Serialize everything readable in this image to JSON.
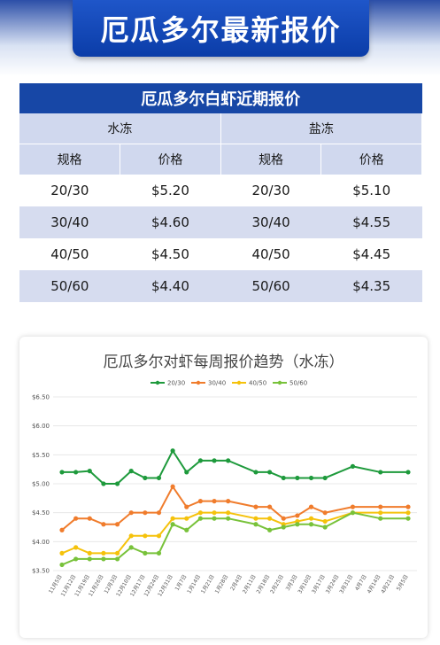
{
  "banner": {
    "title": "厄瓜多尔最新报价"
  },
  "table": {
    "title": "厄瓜多尔白虾近期报价",
    "groups": [
      "水冻",
      "盐冻"
    ],
    "columns": [
      "规格",
      "价格",
      "规格",
      "价格"
    ],
    "rows": [
      [
        "20/30",
        "$5.20",
        "20/30",
        "$5.10"
      ],
      [
        "30/40",
        "$4.60",
        "30/40",
        "$4.55"
      ],
      [
        "40/50",
        "$4.50",
        "40/50",
        "$4.45"
      ],
      [
        "50/60",
        "$4.40",
        "50/60",
        "$4.35"
      ]
    ]
  },
  "chart_data": {
    "type": "line",
    "title": "厄瓜多尔对虾每周报价趋势（水冻）",
    "xlabel": "",
    "ylabel": "",
    "ylim": [
      3.5,
      6.5
    ],
    "yticks": [
      "$3.50",
      "$4.00",
      "$4.50",
      "$5.00",
      "$5.50",
      "$6.00",
      "$6.50"
    ],
    "grid": true,
    "legend_position": "top",
    "categories": [
      "11月5日",
      "11月12日",
      "11月19日",
      "11月26日",
      "12月3日",
      "12月10日",
      "12月17日",
      "12月24日",
      "12月31日",
      "1月7日",
      "1月14日",
      "1月21日",
      "1月28日",
      "2月4日",
      "2月11日",
      "2月18日",
      "2月25日",
      "3月3日",
      "3月10日",
      "3月17日",
      "3月24日",
      "3月31日",
      "4月7日",
      "4月14日",
      "4月21日",
      "5月5日"
    ],
    "x_positions": [
      0,
      1,
      2,
      3,
      4,
      5,
      6,
      7,
      8,
      9,
      10,
      11,
      12,
      13,
      14,
      15,
      16,
      17,
      18,
      19,
      20,
      21,
      22,
      23,
      24,
      25
    ],
    "series": [
      {
        "name": "20/30",
        "color": "#1e9a3c",
        "points": [
          [
            0,
            5.2
          ],
          [
            1,
            5.2
          ],
          [
            2,
            5.22
          ],
          [
            3,
            5.0
          ],
          [
            4,
            5.0
          ],
          [
            5,
            5.22
          ],
          [
            6,
            5.1
          ],
          [
            7,
            5.1
          ],
          [
            8,
            5.57
          ],
          [
            9,
            5.2
          ],
          [
            10,
            5.4
          ],
          [
            11,
            5.4
          ],
          [
            12,
            5.4
          ],
          [
            14,
            5.2
          ],
          [
            15,
            5.2
          ],
          [
            16,
            5.1
          ],
          [
            17,
            5.1
          ],
          [
            18,
            5.1
          ],
          [
            19,
            5.1
          ],
          [
            21,
            5.3
          ],
          [
            23,
            5.2
          ],
          [
            25,
            5.2
          ]
        ]
      },
      {
        "name": "30/40",
        "color": "#f07c2c",
        "points": [
          [
            0,
            4.2
          ],
          [
            1,
            4.4
          ],
          [
            2,
            4.4
          ],
          [
            3,
            4.3
          ],
          [
            4,
            4.3
          ],
          [
            5,
            4.5
          ],
          [
            6,
            4.5
          ],
          [
            7,
            4.5
          ],
          [
            8,
            4.95
          ],
          [
            9,
            4.6
          ],
          [
            10,
            4.7
          ],
          [
            11,
            4.7
          ],
          [
            12,
            4.7
          ],
          [
            14,
            4.6
          ],
          [
            15,
            4.6
          ],
          [
            16,
            4.4
          ],
          [
            17,
            4.45
          ],
          [
            18,
            4.6
          ],
          [
            19,
            4.5
          ],
          [
            21,
            4.6
          ],
          [
            23,
            4.6
          ],
          [
            25,
            4.6
          ]
        ]
      },
      {
        "name": "40/50",
        "color": "#f5c20b",
        "points": [
          [
            0,
            3.8
          ],
          [
            1,
            3.9
          ],
          [
            2,
            3.8
          ],
          [
            3,
            3.8
          ],
          [
            4,
            3.8
          ],
          [
            5,
            4.1
          ],
          [
            6,
            4.1
          ],
          [
            7,
            4.1
          ],
          [
            8,
            4.4
          ],
          [
            9,
            4.4
          ],
          [
            10,
            4.5
          ],
          [
            11,
            4.5
          ],
          [
            12,
            4.5
          ],
          [
            14,
            4.4
          ],
          [
            15,
            4.4
          ],
          [
            16,
            4.3
          ],
          [
            17,
            4.35
          ],
          [
            18,
            4.4
          ],
          [
            19,
            4.35
          ],
          [
            21,
            4.5
          ],
          [
            23,
            4.5
          ],
          [
            25,
            4.5
          ]
        ]
      },
      {
        "name": "50/60",
        "color": "#78c23a",
        "points": [
          [
            0,
            3.6
          ],
          [
            1,
            3.7
          ],
          [
            2,
            3.7
          ],
          [
            3,
            3.7
          ],
          [
            4,
            3.7
          ],
          [
            5,
            3.9
          ],
          [
            6,
            3.8
          ],
          [
            7,
            3.8
          ],
          [
            8,
            4.3
          ],
          [
            9,
            4.2
          ],
          [
            10,
            4.4
          ],
          [
            11,
            4.4
          ],
          [
            12,
            4.4
          ],
          [
            14,
            4.3
          ],
          [
            15,
            4.2
          ],
          [
            16,
            4.25
          ],
          [
            17,
            4.3
          ],
          [
            18,
            4.3
          ],
          [
            19,
            4.25
          ],
          [
            21,
            4.5
          ],
          [
            23,
            4.4
          ],
          [
            25,
            4.4
          ]
        ]
      }
    ]
  }
}
